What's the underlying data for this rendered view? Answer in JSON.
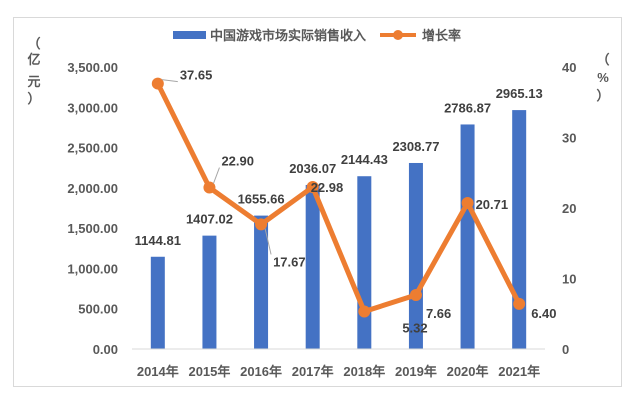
{
  "chart_data": {
    "type": "bar+line",
    "categories": [
      "2014年",
      "2015年",
      "2016年",
      "2017年",
      "2018年",
      "2019年",
      "2020年",
      "2021年"
    ],
    "series": [
      {
        "name": "中国游戏市场实际销售收入",
        "kind": "bar",
        "axis": "left",
        "color": "#4472c4",
        "values": [
          1144.81,
          1407.02,
          1655.66,
          2036.07,
          2144.43,
          2308.77,
          2786.87,
          2965.13
        ],
        "labels": [
          "1144.81",
          "1407.02",
          "1655.66",
          "2036.07",
          "2144.43",
          "2308.77",
          "2786.87",
          "2965.13"
        ]
      },
      {
        "name": "增长率",
        "kind": "line",
        "axis": "right",
        "color": "#ed7d31",
        "values": [
          37.65,
          22.9,
          17.67,
          22.98,
          5.32,
          7.66,
          20.71,
          6.4
        ],
        "labels": [
          "37.65",
          "22.90",
          "17.67",
          "22.98",
          "5.32",
          "7.66",
          "20.71",
          "6.40"
        ]
      }
    ],
    "y_left": {
      "label_chars": [
        "（",
        "亿",
        "元",
        "）"
      ],
      "ylim": [
        0,
        3500
      ],
      "ticks": [
        "0.00",
        "500.00",
        "1,000.00",
        "1,500.00",
        "2,000.00",
        "2,500.00",
        "3,000.00",
        "3,500.00"
      ]
    },
    "y_right": {
      "label_chars": [
        "（",
        "%",
        "）"
      ],
      "ylim": [
        0,
        40
      ],
      "ticks": [
        "0",
        "10",
        "20",
        "30",
        "40"
      ]
    },
    "legend_position": "top-center",
    "grid": false
  }
}
